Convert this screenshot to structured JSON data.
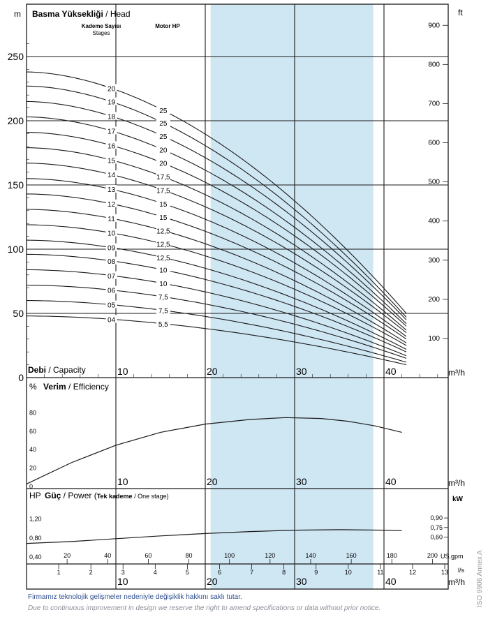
{
  "colors": {
    "highlight": "#cfe6f3",
    "line": "#1a1a1a",
    "note": "#2f4f8f",
    "note_sub": "#8a8f99",
    "side": "#9a9a9a"
  },
  "labels": {
    "head_unit": "m",
    "head_title_bold": "Basma Yüksekliği",
    "head_title_rest": " / Head",
    "ft_unit": "ft",
    "stages_tr": "Kademe Sayısı",
    "stages_en": "Stages",
    "motor_hp": "Motor HP",
    "capacity_bold": "Debi",
    "capacity_rest": " / Capacity",
    "flow_unit": "m³/h",
    "eff_unit": "%",
    "eff_bold": "Verim",
    "eff_rest": " / Efficiency",
    "power_unit": "HP",
    "power_bold": "Güç",
    "power_rest": " / Power (",
    "power_stage_bold": "Tek kademe",
    "power_stage_rest": " / One stage)",
    "kw_unit": "kW",
    "usgpm_unit": "US.gpm",
    "ls_unit": "l/s",
    "side_text": "ISO 9906 Annex A",
    "note_tr": "Firmamız teknolojik gelişmeler nedeniyle değişiklik hakkını saklı tutar.",
    "note_en": "Due to continuous improvement in design we reserve the right to amend specifications or data without prior notice."
  },
  "chart_data": [
    {
      "type": "line",
      "name": "head",
      "x_unit": "m³/h",
      "y_unit": "m",
      "xlim": [
        0,
        44
      ],
      "ylim": [
        0,
        270
      ],
      "x_ticks": [
        "10",
        "20",
        "30",
        "40"
      ],
      "y_ticks": [
        "0",
        "50",
        "100",
        "150",
        "200",
        "250"
      ],
      "ft_ticks": [
        "100",
        "200",
        "300",
        "400",
        "500",
        "600",
        "700",
        "800",
        "900"
      ],
      "highlight_range": [
        20.6,
        38.8
      ],
      "stage_labels": [
        "20",
        "19",
        "18",
        "17",
        "16",
        "15",
        "14",
        "13",
        "12",
        "11",
        "10",
        "09",
        "08",
        "07",
        "06",
        "05",
        "04"
      ],
      "motor_labels": [
        "25",
        "25",
        "25",
        "20",
        "20",
        "17,5",
        "17,5",
        "15",
        "15",
        "12,5",
        "12,5",
        "12,5",
        "10",
        "10",
        "7,5",
        "7,5",
        "5,5"
      ],
      "series": [
        {
          "stages": 20,
          "shutoff": 238,
          "end": 50
        },
        {
          "stages": 19,
          "shutoff": 227,
          "end": 47
        },
        {
          "stages": 18,
          "shutoff": 215,
          "end": 45
        },
        {
          "stages": 17,
          "shutoff": 203,
          "end": 42
        },
        {
          "stages": 16,
          "shutoff": 191,
          "end": 40
        },
        {
          "stages": 15,
          "shutoff": 179,
          "end": 37
        },
        {
          "stages": 14,
          "shutoff": 167,
          "end": 35
        },
        {
          "stages": 13,
          "shutoff": 155,
          "end": 32
        },
        {
          "stages": 12,
          "shutoff": 143,
          "end": 30
        },
        {
          "stages": 11,
          "shutoff": 131,
          "end": 27
        },
        {
          "stages": 10,
          "shutoff": 119,
          "end": 25
        },
        {
          "stages": 9,
          "shutoff": 107,
          "end": 22
        },
        {
          "stages": 8,
          "shutoff": 96,
          "end": 20
        },
        {
          "stages": 7,
          "shutoff": 84,
          "end": 17
        },
        {
          "stages": 6,
          "shutoff": 72,
          "end": 15
        },
        {
          "stages": 5,
          "shutoff": 60,
          "end": 12
        },
        {
          "stages": 4,
          "shutoff": 48,
          "end": 10
        }
      ]
    },
    {
      "type": "line",
      "name": "efficiency",
      "x_unit": "m³/h",
      "y_unit": "%",
      "ylim": [
        0,
        100
      ],
      "x_ticks": [
        "10",
        "20",
        "30",
        "40"
      ],
      "y_ticks": [
        "0",
        "20",
        "40",
        "60",
        "80"
      ],
      "x": [
        0,
        5,
        10,
        15,
        20,
        25,
        29,
        33,
        36,
        39,
        42
      ],
      "y": [
        2,
        25,
        44,
        58,
        67,
        72,
        74,
        73,
        70,
        65,
        58
      ]
    },
    {
      "type": "line",
      "name": "power",
      "x_unit": "m³/h",
      "y_unit": "HP",
      "ylim": [
        0.4,
        1.35
      ],
      "y_ticks": [
        "0,40",
        "0,80",
        "1,20"
      ],
      "kw_ticks": [
        "0,60",
        "0,75",
        "0,90"
      ],
      "x_ticks": [
        "10",
        "20",
        "30",
        "40"
      ],
      "us_gpm_ticks": [
        "20",
        "40",
        "60",
        "80",
        "100",
        "120",
        "140",
        "160",
        "180",
        "200"
      ],
      "ls_ticks": [
        "1",
        "2",
        "3",
        "4",
        "5",
        "6",
        "7",
        "8",
        "9",
        "10",
        "11",
        "12",
        "13"
      ],
      "x": [
        0,
        5,
        10,
        15,
        20,
        25,
        30,
        35,
        40,
        42
      ],
      "y": [
        0.67,
        0.71,
        0.77,
        0.83,
        0.88,
        0.92,
        0.95,
        0.96,
        0.95,
        0.94
      ]
    }
  ]
}
